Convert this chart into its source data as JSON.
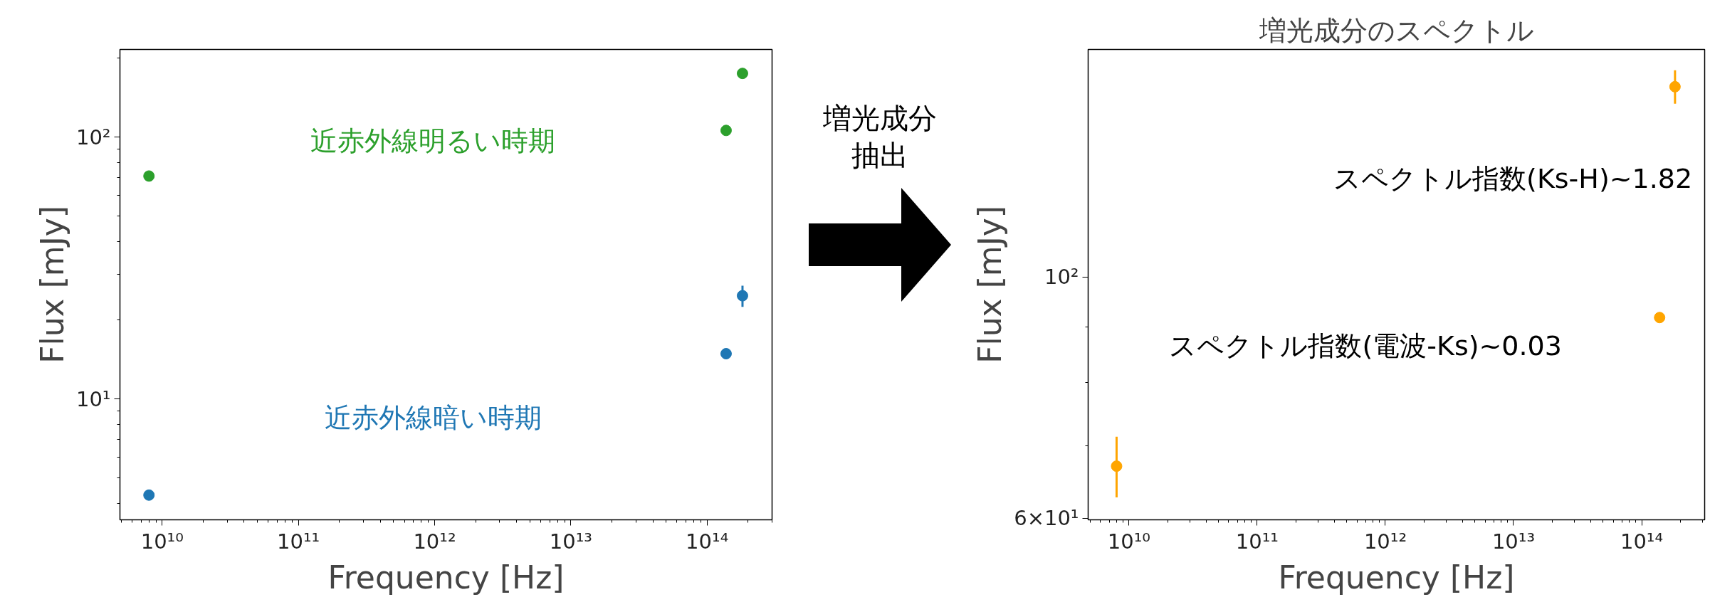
{
  "chart_data": [
    {
      "type": "scatter",
      "xlabel": "Frequency [Hz]",
      "ylabel": "Flux [mJy]",
      "log": "xy",
      "grid": false,
      "marker": "circle",
      "xlim": [
        4900000000.0,
        300000000000000.0
      ],
      "ylim": [
        3.46,
        216
      ],
      "xticks": [
        {
          "value": 10000000000.0,
          "label": "10¹⁰"
        },
        {
          "value": 100000000000.0,
          "label": "10¹¹"
        },
        {
          "value": 1000000000000.0,
          "label": "10¹²"
        },
        {
          "value": 10000000000000.0,
          "label": "10¹³"
        },
        {
          "value": 100000000000000.0,
          "label": "10¹⁴"
        }
      ],
      "yticks": [
        {
          "value": 10,
          "label": "10¹"
        },
        {
          "value": 100,
          "label": "10²"
        }
      ],
      "x": [
        8000000000.0,
        138000000000000.0,
        182000000000000.0
      ],
      "series": [
        {
          "name": "近赤外線明るい時期",
          "color": "#2ca02c",
          "values": [
            71,
            106,
            175
          ]
        },
        {
          "name": "近赤外線暗い時期",
          "color": "#1f77b4",
          "values": [
            4.3,
            14.9,
            24.8
          ],
          "errors": [
            null,
            null,
            2.3
          ]
        }
      ]
    },
    {
      "type": "other",
      "annotations": [
        "増光成分",
        "抽出"
      ]
    },
    {
      "type": "scatter",
      "title": "増光成分のスペクトル",
      "xlabel": "Frequency [Hz]",
      "ylabel": "Flux [mJy]",
      "log": "xy",
      "grid": false,
      "marker": "circle",
      "xlim": [
        4800000000.0,
        310000000000000.0
      ],
      "ylim": [
        59.8,
        162
      ],
      "xticks": [
        {
          "value": 10000000000.0,
          "label": "10¹⁰"
        },
        {
          "value": 100000000000.0,
          "label": "10¹¹"
        },
        {
          "value": 1000000000000.0,
          "label": "10¹²"
        },
        {
          "value": 10000000000000.0,
          "label": "10¹³"
        },
        {
          "value": 100000000000000.0,
          "label": "10¹⁴"
        }
      ],
      "yticks": [
        {
          "value": 60,
          "label": "6×10¹"
        },
        {
          "value": 100,
          "label": "10²"
        }
      ],
      "x": [
        8000000000.0,
        138000000000000.0,
        182000000000000.0
      ],
      "series": [
        {
          "color": "#ffa500",
          "values": [
            67.0,
            91.8,
            149.7
          ],
          "errors": [
            4.3,
            null,
            5.3
          ]
        }
      ],
      "annotations": [
        "スペクトル指数(Ks-H)~1.82",
        "スペクトル指数(電波-Ks)~0.03"
      ]
    }
  ]
}
